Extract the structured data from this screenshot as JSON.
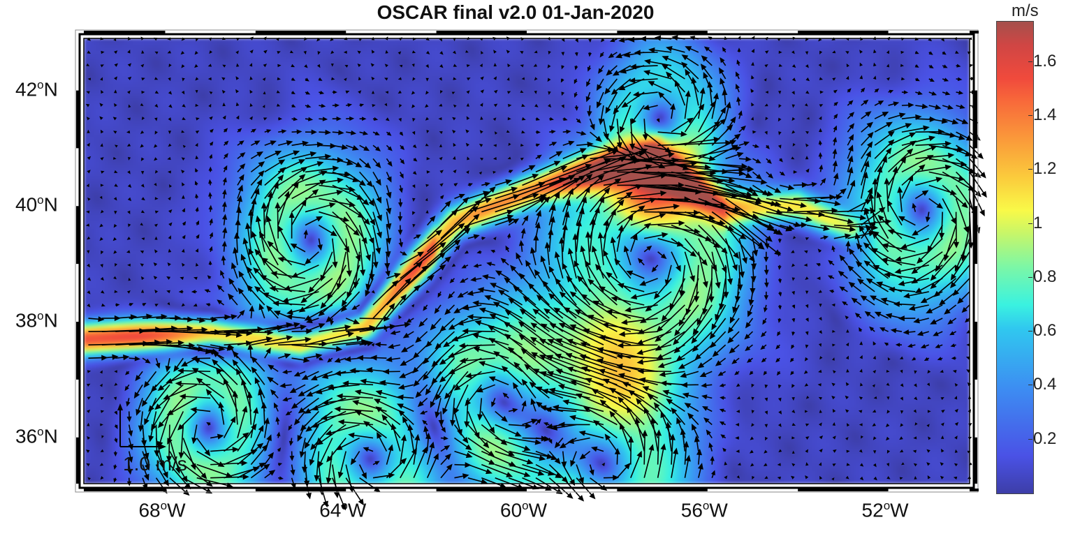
{
  "title": "OSCAR final v2.0  01-Jan-2020",
  "colorbar": {
    "unit": "m/s",
    "ticks": [
      "0.2",
      "0.4",
      "0.6",
      "0.8",
      "1",
      "1.2",
      "1.4",
      "1.6"
    ],
    "range": [
      0,
      1.75
    ]
  },
  "axes": {
    "x_ticks": [
      {
        "value": -68,
        "label": "68",
        "suffix": "W"
      },
      {
        "value": -64,
        "label": "64",
        "suffix": "W"
      },
      {
        "value": -60,
        "label": "60",
        "suffix": "W"
      },
      {
        "value": -56,
        "label": "56",
        "suffix": "W"
      },
      {
        "value": -52,
        "label": "52",
        "suffix": "W"
      }
    ],
    "y_ticks": [
      {
        "value": 42,
        "label": "42",
        "suffix": "N"
      },
      {
        "value": 40,
        "label": "40",
        "suffix": "N"
      },
      {
        "value": 38,
        "label": "38",
        "suffix": "N"
      },
      {
        "value": 36,
        "label": "36",
        "suffix": "N"
      }
    ],
    "degree_symbol": "o",
    "lon_range": [
      -69.8,
      -50.2
    ],
    "lat_range": [
      35.2,
      42.9
    ]
  },
  "scale_vector": {
    "label": "1.0 m/s",
    "speed": 1.0
  },
  "chart_data": {
    "type": "heatmap",
    "variable": "surface current speed (m/s) with velocity vectors",
    "gulf_stream_path": [
      [
        -69.8,
        37.7
      ],
      [
        -67,
        37.8
      ],
      [
        -65,
        37.6
      ],
      [
        -63.6,
        37.9
      ],
      [
        -62.6,
        38.8
      ],
      [
        -61.6,
        39.7
      ],
      [
        -60,
        40.25
      ],
      [
        -58.5,
        40.6
      ],
      [
        -57.2,
        40.9
      ],
      [
        -56.5,
        40.4
      ],
      [
        -55.6,
        39.95
      ],
      [
        -54,
        40.0
      ],
      [
        -52.8,
        39.6
      ]
    ],
    "eddies": [
      [
        -67,
        36.2,
        0.8,
        1
      ],
      [
        -64.8,
        39.4,
        0.9,
        -1
      ],
      [
        -60.6,
        36.7,
        0.9,
        1
      ],
      [
        -57.3,
        39.1,
        1.2,
        -1
      ],
      [
        -57.1,
        41.3,
        0.8,
        1
      ],
      [
        -51.3,
        39.9,
        0.9,
        -1
      ],
      [
        -58.3,
        35.6,
        1.0,
        1
      ],
      [
        -63.5,
        35.6,
        0.9,
        1
      ]
    ]
  }
}
